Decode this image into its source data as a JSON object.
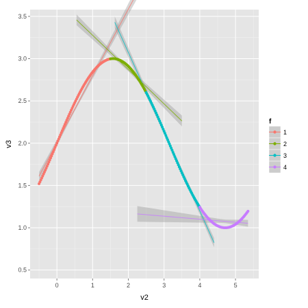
{
  "chart_data": {
    "type": "scatter",
    "title": "",
    "xlabel": "v2",
    "ylabel": "v3",
    "xlim": [
      -0.75,
      5.65
    ],
    "ylim": [
      0.4,
      3.58
    ],
    "xticks": [
      0,
      1,
      2,
      3,
      4,
      5
    ],
    "yticks": [
      0.5,
      1.0,
      1.5,
      2.0,
      2.5,
      3.0,
      3.5
    ],
    "ytick_labels": [
      "0.5",
      "1.0",
      "1.5",
      "2.0",
      "2.5",
      "3.0",
      "3.5"
    ],
    "grid": true,
    "legend_position": "right",
    "legend_title": "f",
    "background_color": "#e5e5e5",
    "grid_color": "#ffffff",
    "curve": {
      "formula": "v3 = sin(v2) + 2",
      "note": "points lie on this curve"
    },
    "series": [
      {
        "name": "1",
        "color": "#f8766d",
        "x_range": [
          -0.5,
          1.5
        ],
        "trend_x_range": [
          -0.5,
          2.3
        ]
      },
      {
        "name": "2",
        "color": "#7cae00",
        "x_range": [
          1.5,
          2.5
        ],
        "trend_x_range": [
          0.55,
          3.5
        ]
      },
      {
        "name": "3",
        "color": "#00bfc4",
        "x_range": [
          2.5,
          4.0
        ],
        "trend_x_range": [
          1.62,
          4.4
        ]
      },
      {
        "name": "4",
        "color": "#c77cff",
        "x_range": [
          4.0,
          5.35
        ],
        "trend_x_range": [
          2.25,
          5.35
        ]
      }
    ]
  }
}
